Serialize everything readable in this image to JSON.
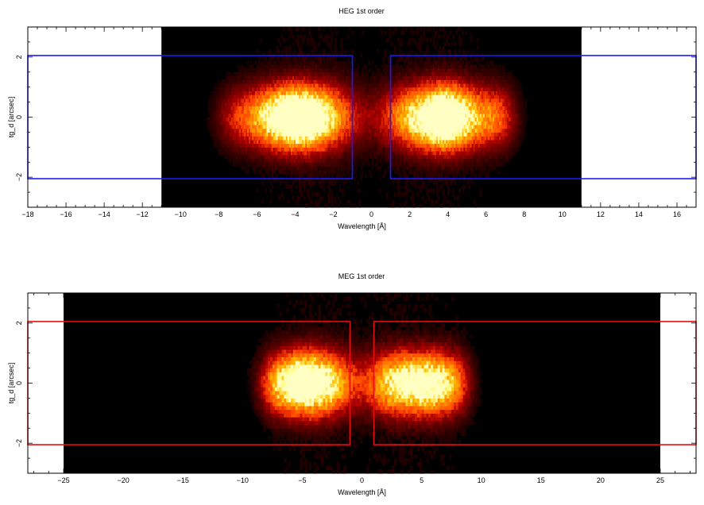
{
  "chart_data": [
    {
      "type": "heatmap",
      "title": "HEG 1st order",
      "xlabel": "Wavelength [Å]",
      "ylabel": "tg_d [arcsec]",
      "xlim": [
        -18,
        17
      ],
      "ylim": [
        -3,
        3
      ],
      "data_extent_x": [
        -11,
        11
      ],
      "xticks": [
        -18,
        -16,
        -14,
        -12,
        -10,
        -8,
        -6,
        -4,
        -2,
        0,
        2,
        4,
        6,
        8,
        10,
        12,
        14,
        16
      ],
      "yticks": [
        -2,
        0,
        2
      ],
      "region_color": "#1a1aff",
      "regions": [
        {
          "x": [
            -18,
            -1
          ],
          "y": [
            -2.05,
            2.05
          ]
        },
        {
          "x": [
            1,
            17
          ],
          "y": [
            -2.05,
            2.05
          ]
        }
      ],
      "emission": [
        {
          "x": -3.0,
          "width": 1.4,
          "peak": 1.0
        },
        {
          "x": -4.2,
          "width": 1.0,
          "peak": 0.75
        },
        {
          "x": -5.8,
          "width": 0.9,
          "peak": 0.45
        },
        {
          "x": -7.2,
          "width": 0.7,
          "peak": 0.25
        },
        {
          "x": 2.9,
          "width": 1.5,
          "peak": 1.0
        },
        {
          "x": 4.0,
          "width": 0.8,
          "peak": 0.7
        },
        {
          "x": 5.6,
          "width": 0.9,
          "peak": 0.45
        },
        {
          "x": 6.8,
          "width": 0.6,
          "peak": 0.3
        }
      ]
    },
    {
      "type": "heatmap",
      "title": "MEG 1st order",
      "xlabel": "Wavelength [Å]",
      "ylabel": "tg_d [arcsec]",
      "xlim": [
        -28,
        28
      ],
      "ylim": [
        -3,
        3
      ],
      "data_extent_x": [
        -25,
        25
      ],
      "xticks": [
        -25,
        -20,
        -15,
        -10,
        -5,
        0,
        5,
        10,
        15,
        20,
        25
      ],
      "yticks": [
        -2,
        0,
        2
      ],
      "region_color": "#e01010",
      "regions": [
        {
          "x": [
            -28,
            -1
          ],
          "y": [
            -2.05,
            2.05
          ]
        },
        {
          "x": [
            1,
            28
          ],
          "y": [
            -2.05,
            2.05
          ]
        }
      ],
      "emission": [
        {
          "x": -3.3,
          "width": 1.8,
          "peak": 1.0
        },
        {
          "x": -5.5,
          "width": 1.3,
          "peak": 0.75
        },
        {
          "x": -7.3,
          "width": 1.0,
          "peak": 0.4
        },
        {
          "x": 3.2,
          "width": 1.9,
          "peak": 1.0
        },
        {
          "x": 6.2,
          "width": 1.3,
          "peak": 0.8
        },
        {
          "x": 8.0,
          "width": 0.9,
          "peak": 0.3
        }
      ]
    }
  ]
}
